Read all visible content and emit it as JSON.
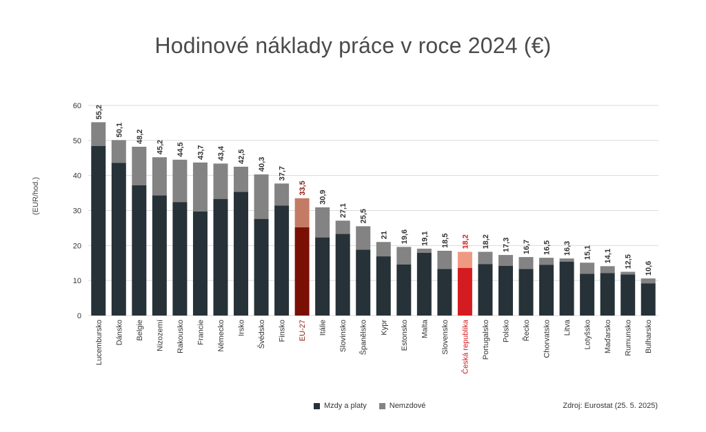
{
  "colors": {
    "wages": "#263238",
    "nonwage": "#838383",
    "eu_wages": "#7a1005",
    "eu_nonwage": "#c47b66",
    "eu_label": "#8b1a10",
    "cz_wages": "#d41c20",
    "cz_nonwage": "#ee9a83",
    "cz_label": "#d41c20",
    "grid": "#d9d9d9",
    "text": "#333333"
  },
  "chart_data": {
    "type": "bar",
    "stacked": true,
    "title": "Hodinové náklady práce v roce 2024 (€)",
    "ylabel": "(EUR/hod.)",
    "ylim": [
      0,
      60
    ],
    "yticks": [
      0,
      10,
      20,
      30,
      40,
      50,
      60
    ],
    "grid": true,
    "legend_position": "bottom",
    "categories": [
      "Lucembursko",
      "Dánsko",
      "Belgie",
      "Nizozemí",
      "Rakousko",
      "Francie",
      "Německo",
      "Irsko",
      "Švédsko",
      "Finsko",
      "EU-27",
      "Itálie",
      "Slovinsko",
      "Španělsko",
      "Kypr",
      "Estonsko",
      "Malta",
      "Slovensko",
      "Česká republika",
      "Portugalsko",
      "Polsko",
      "Řecko",
      "Chorvatsko",
      "Litva",
      "Lotyšsko",
      "Maďarsko",
      "Rumunsko",
      "Bulharsko"
    ],
    "highlight": {
      "EU-27": "eu",
      "Česká republika": "cz"
    },
    "totals_labels": [
      "55,2",
      "50,1",
      "48,2",
      "45,2",
      "44,5",
      "43,7",
      "43,4",
      "42,5",
      "40,3",
      "37,7",
      "33,5",
      "30,9",
      "27,1",
      "25,5",
      "21",
      "19,6",
      "19,1",
      "18,5",
      "18,2",
      "18,2",
      "17,3",
      "16,7",
      "16,5",
      "16,3",
      "15,1",
      "14,1",
      "12,5",
      "10,6"
    ],
    "series": [
      {
        "name": "Mzdy a platy",
        "values": [
          48.4,
          43.6,
          37.2,
          34.3,
          32.4,
          29.7,
          33.3,
          35.3,
          27.6,
          31.4,
          25.2,
          22.3,
          23.3,
          18.8,
          16.9,
          14.6,
          17.9,
          13.3,
          13.6,
          14.7,
          14.2,
          13.3,
          14.5,
          15.4,
          11.9,
          12.1,
          11.7,
          9.2
        ]
      },
      {
        "name": "Nemzdové",
        "values": [
          6.8,
          6.5,
          11.0,
          10.9,
          12.1,
          14.0,
          10.1,
          7.2,
          12.7,
          6.3,
          8.3,
          8.6,
          3.8,
          6.7,
          4.1,
          5.0,
          1.2,
          5.2,
          4.6,
          3.5,
          3.1,
          3.4,
          2.0,
          0.9,
          3.2,
          2.0,
          0.8,
          1.4
        ]
      }
    ]
  },
  "legend": {
    "wages_label": "Mzdy a platy",
    "nonwage_label": "Nemzdové"
  },
  "source": "Zdroj: Eurostat (25. 5. 2025)"
}
